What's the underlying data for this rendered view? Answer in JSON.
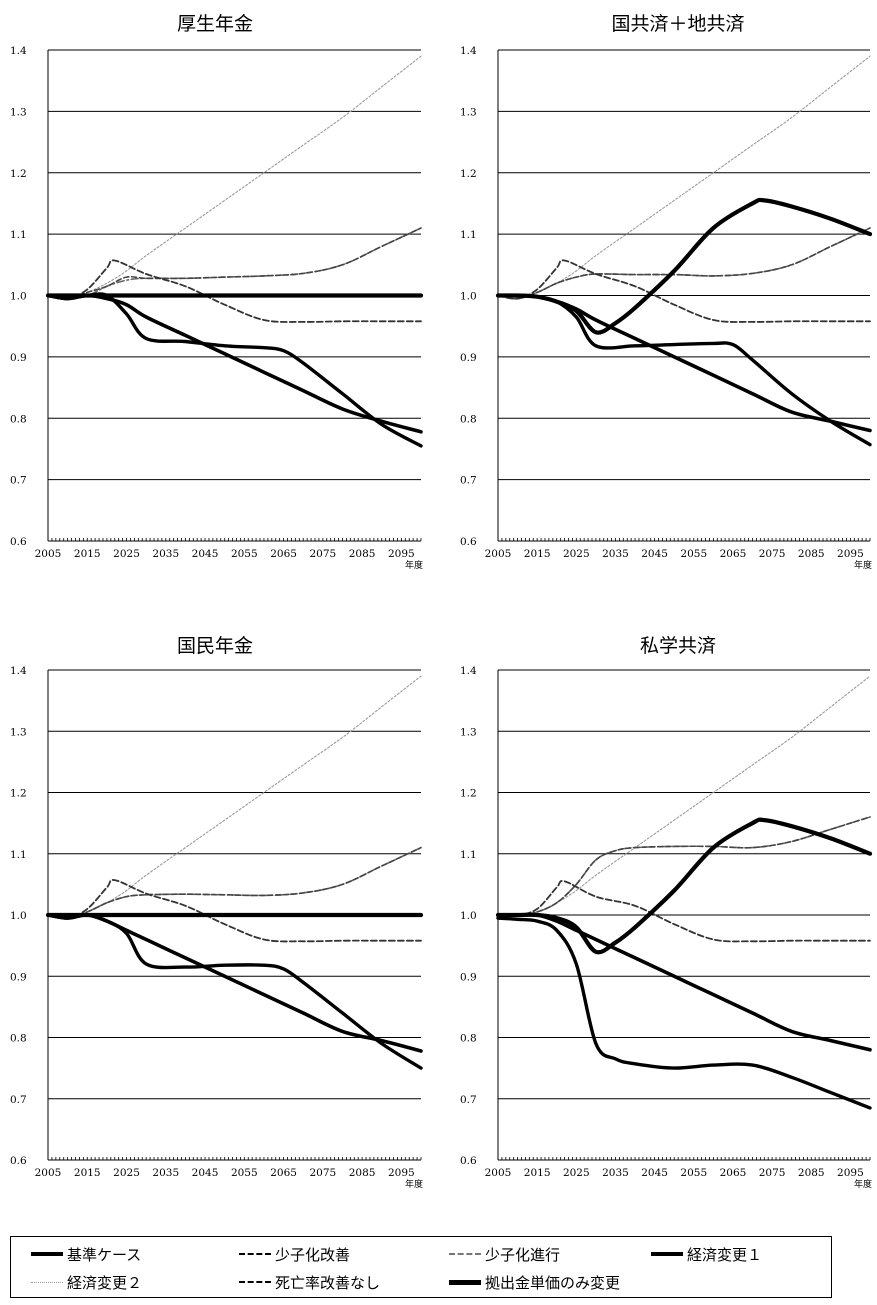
{
  "chart_data": [
    {
      "type": "line",
      "title": "厚生年金",
      "xlabel": "年度",
      "ylim": [
        0.6,
        1.4
      ],
      "xlim": [
        2005,
        2100
      ],
      "xticks": [
        "2005",
        "2015",
        "2025",
        "2035",
        "2045",
        "2055",
        "2065",
        "2075",
        "2085",
        "2095"
      ],
      "yticks": [
        "0.6",
        "0.7",
        "0.8",
        "0.9",
        "1.0",
        "1.1",
        "1.2",
        "1.3",
        "1.4"
      ],
      "grid": "horizontal",
      "series": [
        {
          "name": "基準ケース",
          "x": [
            2005,
            2010,
            2015,
            2020,
            2025,
            2030,
            2040,
            2050,
            2060,
            2070,
            2080,
            2090,
            2100
          ],
          "y": [
            1.0,
            0.995,
            1.0,
            0.995,
            0.985,
            0.965,
            0.935,
            0.905,
            0.875,
            0.845,
            0.815,
            0.795,
            0.778
          ]
        },
        {
          "name": "少子化改善",
          "x": [
            2005,
            2010,
            2015,
            2020,
            2022,
            2030,
            2040,
            2050,
            2060,
            2070,
            2080,
            2090,
            2100
          ],
          "y": [
            1.0,
            0.995,
            1.01,
            1.045,
            1.057,
            1.035,
            1.015,
            0.985,
            0.96,
            0.957,
            0.958,
            0.958,
            0.958
          ]
        },
        {
          "name": "少子化進行",
          "x": [
            2005,
            2010,
            2015,
            2020,
            2025,
            2030,
            2040,
            2050,
            2060,
            2070,
            2080,
            2090,
            2100
          ],
          "y": [
            1.0,
            0.995,
            1.0,
            1.015,
            1.025,
            1.028,
            1.028,
            1.03,
            1.032,
            1.036,
            1.05,
            1.08,
            1.11
          ]
        },
        {
          "name": "経済変更1",
          "x": [
            2005,
            2010,
            2015,
            2020,
            2025,
            2030,
            2040,
            2050,
            2060,
            2065,
            2070,
            2080,
            2090,
            2100
          ],
          "y": [
            1.0,
            0.995,
            1.0,
            1.0,
            0.97,
            0.93,
            0.925,
            0.918,
            0.915,
            0.91,
            0.89,
            0.84,
            0.79,
            0.755
          ]
        },
        {
          "name": "経済変更2",
          "x": [
            2005,
            2010,
            2015,
            2020,
            2025,
            2030,
            2040,
            2050,
            2060,
            2070,
            2080,
            2090,
            2100
          ],
          "y": [
            1.0,
            0.995,
            1.005,
            1.02,
            1.04,
            1.065,
            1.11,
            1.155,
            1.2,
            1.245,
            1.29,
            1.34,
            1.39
          ]
        },
        {
          "name": "死亡率改善なし",
          "x": [
            2005,
            2010,
            2015,
            2020,
            2025,
            2030,
            2040,
            2050,
            2060,
            2070,
            2080,
            2090,
            2100
          ],
          "y": [
            1.0,
            0.995,
            1.005,
            1.015,
            1.03,
            1.028,
            1.028,
            1.03,
            1.032,
            1.036,
            1.05,
            1.08,
            1.11
          ]
        },
        {
          "name": "拠出金単価のみ変更",
          "x": [
            2005,
            2010,
            2015,
            2020,
            2030,
            2040,
            2050,
            2060,
            2070,
            2080,
            2090,
            2100
          ],
          "y": [
            1.0,
            1.0,
            1.0,
            1.0,
            1.0,
            1.0,
            1.0,
            1.0,
            1.0,
            1.0,
            1.0,
            1.0
          ]
        }
      ]
    },
    {
      "type": "line",
      "title": "国共済＋地共済",
      "xlabel": "年度",
      "ylim": [
        0.6,
        1.4
      ],
      "xlim": [
        2005,
        2100
      ],
      "xticks": [
        "2005",
        "2015",
        "2025",
        "2035",
        "2045",
        "2055",
        "2065",
        "2075",
        "2085",
        "2095"
      ],
      "yticks": [
        "0.6",
        "0.7",
        "0.8",
        "0.9",
        "1.0",
        "1.1",
        "1.2",
        "1.3",
        "1.4"
      ],
      "grid": "horizontal",
      "series": [
        {
          "name": "基準ケース",
          "x": [
            2005,
            2010,
            2015,
            2020,
            2025,
            2030,
            2040,
            2050,
            2060,
            2070,
            2080,
            2090,
            2100
          ],
          "y": [
            1.0,
            1.0,
            0.998,
            0.99,
            0.978,
            0.96,
            0.93,
            0.9,
            0.87,
            0.84,
            0.81,
            0.795,
            0.78
          ]
        },
        {
          "name": "少子化改善",
          "x": [
            2005,
            2010,
            2015,
            2020,
            2022,
            2030,
            2040,
            2050,
            2060,
            2070,
            2080,
            2090,
            2100
          ],
          "y": [
            1.0,
            0.995,
            1.01,
            1.045,
            1.057,
            1.035,
            1.015,
            0.985,
            0.96,
            0.957,
            0.958,
            0.958,
            0.958
          ]
        },
        {
          "name": "少子化進行",
          "x": [
            2005,
            2010,
            2015,
            2020,
            2025,
            2030,
            2040,
            2050,
            2060,
            2070,
            2080,
            2090,
            2100
          ],
          "y": [
            1.0,
            0.995,
            1.005,
            1.02,
            1.03,
            1.035,
            1.034,
            1.034,
            1.032,
            1.036,
            1.05,
            1.08,
            1.11
          ]
        },
        {
          "name": "経済変更1",
          "x": [
            2005,
            2010,
            2015,
            2020,
            2025,
            2030,
            2040,
            2050,
            2060,
            2065,
            2070,
            2080,
            2090,
            2100
          ],
          "y": [
            1.0,
            1.0,
            0.998,
            0.99,
            0.965,
            0.918,
            0.918,
            0.92,
            0.922,
            0.92,
            0.895,
            0.84,
            0.795,
            0.757
          ]
        },
        {
          "name": "経済変更2",
          "x": [
            2005,
            2010,
            2015,
            2020,
            2025,
            2030,
            2040,
            2050,
            2060,
            2070,
            2080,
            2090,
            2100
          ],
          "y": [
            1.0,
            0.995,
            1.005,
            1.02,
            1.04,
            1.065,
            1.11,
            1.155,
            1.2,
            1.245,
            1.29,
            1.34,
            1.39
          ]
        },
        {
          "name": "死亡率改善なし",
          "x": [
            2005,
            2010,
            2015,
            2020,
            2025,
            2030,
            2040,
            2050,
            2060,
            2070,
            2080,
            2090,
            2100
          ],
          "y": [
            1.0,
            0.995,
            1.005,
            1.02,
            1.03,
            1.035,
            1.034,
            1.034,
            1.032,
            1.036,
            1.05,
            1.08,
            1.11
          ]
        },
        {
          "name": "拠出金単価のみ変更",
          "x": [
            2005,
            2010,
            2015,
            2020,
            2025,
            2030,
            2035,
            2040,
            2050,
            2060,
            2070,
            2073,
            2080,
            2090,
            2100
          ],
          "y": [
            1.0,
            1.0,
            0.998,
            0.99,
            0.975,
            0.94,
            0.955,
            0.98,
            1.04,
            1.11,
            1.15,
            1.155,
            1.145,
            1.125,
            1.1
          ]
        }
      ]
    },
    {
      "type": "line",
      "title": "国民年金",
      "xlabel": "年度",
      "ylim": [
        0.6,
        1.4
      ],
      "xlim": [
        2005,
        2100
      ],
      "xticks": [
        "2005",
        "2015",
        "2025",
        "2035",
        "2045",
        "2055",
        "2065",
        "2075",
        "2085",
        "2095"
      ],
      "yticks": [
        "0.6",
        "0.7",
        "0.8",
        "0.9",
        "1.0",
        "1.1",
        "1.2",
        "1.3",
        "1.4"
      ],
      "grid": "horizontal",
      "series": [
        {
          "name": "基準ケース",
          "x": [
            2005,
            2010,
            2015,
            2020,
            2025,
            2030,
            2040,
            2050,
            2060,
            2070,
            2080,
            2090,
            2100
          ],
          "y": [
            1.0,
            0.995,
            1.0,
            0.99,
            0.975,
            0.96,
            0.93,
            0.9,
            0.87,
            0.84,
            0.81,
            0.795,
            0.778
          ]
        },
        {
          "name": "少子化改善",
          "x": [
            2005,
            2010,
            2015,
            2020,
            2022,
            2030,
            2040,
            2050,
            2060,
            2070,
            2080,
            2090,
            2100
          ],
          "y": [
            1.0,
            0.995,
            1.01,
            1.045,
            1.057,
            1.035,
            1.015,
            0.985,
            0.96,
            0.957,
            0.958,
            0.958,
            0.958
          ]
        },
        {
          "name": "少子化進行",
          "x": [
            2005,
            2010,
            2015,
            2020,
            2025,
            2030,
            2040,
            2050,
            2060,
            2070,
            2080,
            2090,
            2100
          ],
          "y": [
            1.0,
            0.995,
            1.005,
            1.02,
            1.03,
            1.033,
            1.034,
            1.033,
            1.032,
            1.036,
            1.05,
            1.08,
            1.11
          ]
        },
        {
          "name": "経済変更1",
          "x": [
            2005,
            2010,
            2015,
            2020,
            2025,
            2030,
            2040,
            2050,
            2060,
            2065,
            2070,
            2080,
            2090,
            2100
          ],
          "y": [
            1.0,
            0.995,
            1.0,
            0.99,
            0.97,
            0.92,
            0.915,
            0.918,
            0.918,
            0.912,
            0.89,
            0.84,
            0.79,
            0.75
          ]
        },
        {
          "name": "経済変更2",
          "x": [
            2005,
            2010,
            2015,
            2020,
            2025,
            2030,
            2040,
            2050,
            2060,
            2070,
            2080,
            2090,
            2100
          ],
          "y": [
            1.0,
            0.995,
            1.005,
            1.02,
            1.04,
            1.065,
            1.11,
            1.155,
            1.2,
            1.245,
            1.29,
            1.34,
            1.39
          ]
        },
        {
          "name": "死亡率改善なし",
          "x": [
            2005,
            2010,
            2015,
            2020,
            2025,
            2030,
            2040,
            2050,
            2060,
            2070,
            2080,
            2090,
            2100
          ],
          "y": [
            1.0,
            0.995,
            1.005,
            1.02,
            1.03,
            1.033,
            1.034,
            1.033,
            1.032,
            1.036,
            1.05,
            1.08,
            1.11
          ]
        },
        {
          "name": "拠出金単価のみ変更",
          "x": [
            2005,
            2010,
            2015,
            2020,
            2030,
            2040,
            2050,
            2060,
            2070,
            2080,
            2090,
            2100
          ],
          "y": [
            1.0,
            1.0,
            1.0,
            1.0,
            1.0,
            1.0,
            1.0,
            1.0,
            1.0,
            1.0,
            1.0,
            1.0
          ]
        }
      ]
    },
    {
      "type": "line",
      "title": "私学共済",
      "xlabel": "年度",
      "ylim": [
        0.6,
        1.4
      ],
      "xlim": [
        2005,
        2100
      ],
      "xticks": [
        "2005",
        "2015",
        "2025",
        "2035",
        "2045",
        "2055",
        "2065",
        "2075",
        "2085",
        "2095"
      ],
      "yticks": [
        "0.6",
        "0.7",
        "0.8",
        "0.9",
        "1.0",
        "1.1",
        "1.2",
        "1.3",
        "1.4"
      ],
      "grid": "horizontal",
      "series": [
        {
          "name": "基準ケース",
          "x": [
            2005,
            2010,
            2015,
            2020,
            2025,
            2030,
            2040,
            2050,
            2060,
            2070,
            2080,
            2090,
            2100
          ],
          "y": [
            1.0,
            1.0,
            1.0,
            0.99,
            0.975,
            0.96,
            0.93,
            0.9,
            0.87,
            0.84,
            0.81,
            0.795,
            0.78
          ]
        },
        {
          "name": "少子化改善",
          "x": [
            2005,
            2010,
            2015,
            2020,
            2022,
            2030,
            2040,
            2050,
            2060,
            2070,
            2080,
            2090,
            2100
          ],
          "y": [
            1.0,
            1.0,
            1.01,
            1.045,
            1.055,
            1.03,
            1.015,
            0.985,
            0.96,
            0.957,
            0.958,
            0.958,
            0.958
          ]
        },
        {
          "name": "少子化進行",
          "x": [
            2005,
            2010,
            2015,
            2020,
            2025,
            2030,
            2035,
            2040,
            2050,
            2060,
            2070,
            2080,
            2090,
            2100
          ],
          "y": [
            1.0,
            1.0,
            1.005,
            1.02,
            1.05,
            1.09,
            1.105,
            1.11,
            1.112,
            1.112,
            1.11,
            1.12,
            1.14,
            1.16
          ]
        },
        {
          "name": "経済変更1",
          "x": [
            2005,
            2010,
            2015,
            2020,
            2025,
            2030,
            2035,
            2040,
            2050,
            2060,
            2070,
            2080,
            2090,
            2100
          ],
          "y": [
            0.995,
            0.993,
            0.99,
            0.975,
            0.92,
            0.79,
            0.765,
            0.757,
            0.75,
            0.755,
            0.755,
            0.735,
            0.71,
            0.685
          ]
        },
        {
          "name": "経済変更2",
          "x": [
            2005,
            2010,
            2015,
            2020,
            2025,
            2030,
            2040,
            2050,
            2060,
            2070,
            2080,
            2090,
            2100
          ],
          "y": [
            1.0,
            1.0,
            1.005,
            1.02,
            1.04,
            1.065,
            1.11,
            1.155,
            1.2,
            1.245,
            1.29,
            1.34,
            1.39
          ]
        },
        {
          "name": "死亡率改善なし",
          "x": [
            2005,
            2010,
            2015,
            2020,
            2025,
            2030,
            2035,
            2040,
            2050,
            2060,
            2070,
            2080,
            2090,
            2100
          ],
          "y": [
            1.0,
            1.0,
            1.005,
            1.02,
            1.05,
            1.09,
            1.105,
            1.11,
            1.112,
            1.112,
            1.11,
            1.12,
            1.14,
            1.16
          ]
        },
        {
          "name": "拠出金単価のみ変更",
          "x": [
            2005,
            2010,
            2015,
            2020,
            2025,
            2030,
            2035,
            2040,
            2050,
            2060,
            2070,
            2073,
            2080,
            2090,
            2100
          ],
          "y": [
            1.0,
            1.0,
            1.0,
            0.995,
            0.98,
            0.94,
            0.955,
            0.98,
            1.04,
            1.11,
            1.15,
            1.155,
            1.145,
            1.125,
            1.1
          ]
        }
      ]
    }
  ],
  "legend": [
    {
      "label": "基準ケース",
      "style": "thick"
    },
    {
      "label": "少子化改善",
      "style": "dash"
    },
    {
      "label": "少子化進行",
      "style": "dashdot"
    },
    {
      "label": "経済変更１",
      "style": "thick"
    },
    {
      "label": "経済変更２",
      "style": "light"
    },
    {
      "label": "死亡率改善なし",
      "style": "dash"
    },
    {
      "label": "拠出金単価のみ変更",
      "style": "thickest"
    }
  ],
  "colors": {
    "line": "#000000",
    "light": "#9a9a9a",
    "grid": "#000000",
    "background": "#ffffff"
  }
}
